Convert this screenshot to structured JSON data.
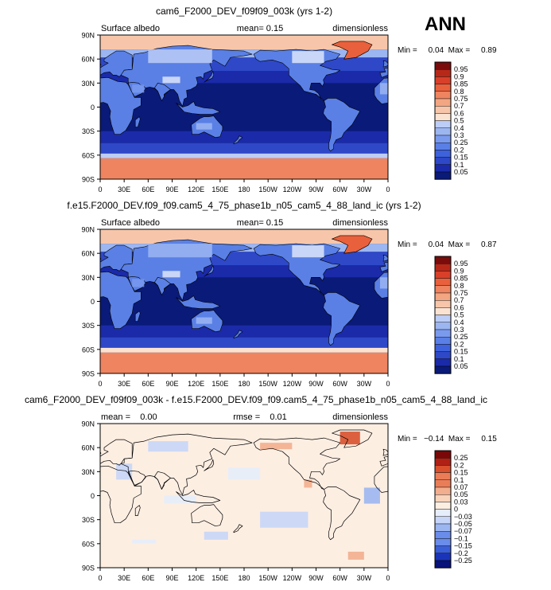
{
  "season": "ANN",
  "lat_ticks": [
    "90N",
    "60N",
    "30N",
    "0",
    "30S",
    "60S",
    "90S"
  ],
  "lon_ticks": [
    "0",
    "30E",
    "60E",
    "90E",
    "120E",
    "150E",
    "180",
    "150W",
    "120W",
    "90W",
    "60W",
    "30W",
    "0"
  ],
  "colors": {
    "albedo": [
      "#0a1a78",
      "#1a2aa8",
      "#2e48c8",
      "#3d62dc",
      "#5a80e6",
      "#7a9aee",
      "#9cb6f2",
      "#bccdf6",
      "#dde5fa",
      "#fbe3d2",
      "#f7c6aa",
      "#f3a682",
      "#ee8460",
      "#e8613c",
      "#d8402a",
      "#b82818",
      "#7a0c0c"
    ],
    "diff": [
      "#08127a",
      "#1a34b8",
      "#3a5ed8",
      "#6a8cea",
      "#9cb6f2",
      "#c6d5f8",
      "#e6edfb",
      "#fdeee2",
      "#f8d4bc",
      "#f2ae8e",
      "#ea7d58",
      "#d8502e",
      "#b02014",
      "#7a0808"
    ],
    "land": "#444444",
    "ocean": "#0c1a7e",
    "ice": "#e35a32"
  },
  "chart_data": [
    {
      "type": "heatmap",
      "title": "cam6_F2000_DEV_f09f09_003k (yrs 1-2)",
      "left_label": "Surface albedo",
      "center_label": "mean=    0.15",
      "right_label": "dimensionless",
      "min_label": "Min =     0.04  Max =     0.89",
      "levels": [
        "0.95",
        "0.9",
        "0.85",
        "0.8",
        "0.75",
        "0.7",
        "0.6",
        "0.5",
        "0.4",
        "0.3",
        "0.25",
        "0.2",
        "0.15",
        "0.1",
        "0.05"
      ],
      "variant": "cam6"
    },
    {
      "type": "heatmap",
      "title": "f.e15.F2000_DEV.f09_f09.cam5_4_75_phase1b_n05_cam5_4_88_land_ic (yrs 1-2)",
      "left_label": "Surface albedo",
      "center_label": "mean=    0.15",
      "right_label": "dimensionless",
      "min_label": "Min =     0.04  Max =     0.87",
      "levels": [
        "0.95",
        "0.9",
        "0.85",
        "0.8",
        "0.75",
        "0.7",
        "0.6",
        "0.5",
        "0.4",
        "0.3",
        "0.25",
        "0.2",
        "0.15",
        "0.1",
        "0.05"
      ],
      "variant": "cam5"
    },
    {
      "type": "heatmap",
      "title": "cam6_F2000_DEV_f09f09_003k - f.e15.F2000_DEV.f09_f09.cam5_4_75_phase1b_n05_cam5_4_88_land_ic",
      "left_label": "mean =    0.00",
      "center_label": "rmse =    0.01",
      "right_label": "dimensionless",
      "min_label": "Min =   −0.14  Max =     0.15",
      "levels": [
        "0.25",
        "0.2",
        "0.15",
        "0.1",
        "0.07",
        "0.05",
        "0.03",
        "0",
        "−0.03",
        "−0.05",
        "−0.07",
        "−0.1",
        "−0.15",
        "−0.2",
        "−0.25"
      ],
      "variant": "diff"
    }
  ]
}
